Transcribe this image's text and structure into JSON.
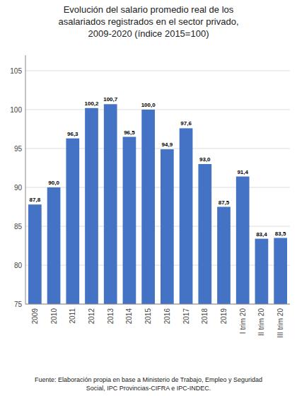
{
  "chart_data": {
    "type": "bar",
    "title": "Evolución del salario promedio real de los\nasalariados registrados en el sector privado,\n2009-2020  (índice 2015=100)",
    "categories": [
      "2009",
      "2010",
      "2011",
      "2012",
      "2013",
      "2014",
      "2015",
      "2016",
      "2017",
      "2018",
      "2019",
      "I trim 20",
      "II trim 20",
      "III trim 20"
    ],
    "values": [
      87.8,
      90.0,
      96.3,
      100.2,
      100.7,
      96.5,
      100.0,
      94.9,
      97.6,
      93.0,
      87.5,
      91.4,
      83.4,
      83.5
    ],
    "value_labels": [
      "87,8",
      "90,0",
      "96,3",
      "100,2",
      "100,7",
      "96,5",
      "100,0",
      "94,9",
      "97,6",
      "93,0",
      "87,5",
      "91,4",
      "83,4",
      "83,5"
    ],
    "data_labels": true,
    "color": "#4472C4",
    "ylim": [
      75,
      107
    ],
    "yticks": [
      75,
      80,
      85,
      90,
      95,
      100,
      105
    ],
    "grid": true,
    "annotations": [
      "Fuente: Elaboración propia en base a Ministerio de Trabajo, Empleo y Seguridad",
      "Social, IPC Provincias-CIFRA e IPC-INDEC."
    ]
  }
}
